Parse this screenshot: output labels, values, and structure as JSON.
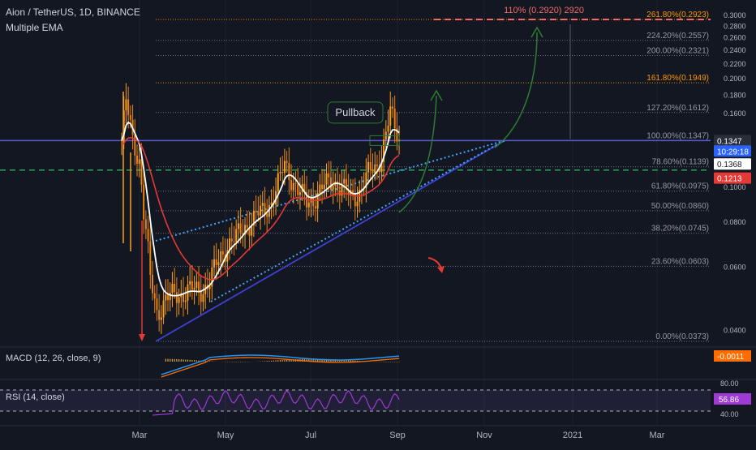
{
  "header": {
    "symbol_line": "Aion / TetherUS, 1D, BINANCE",
    "indicator": "Multiple EMA"
  },
  "macd_label": "MACD (12, 26, close, 9)",
  "rsi_label": "RSI (14, close)",
  "colors": {
    "background": "#131722",
    "bull": "#f7a021",
    "ema_fast": "#ffffff",
    "ema_slow": "#e53935",
    "fib_line": "#787b86",
    "fib_161": "#ff9800",
    "fib_261": "#ff9800",
    "target_dash": "#f06a6a",
    "trend_dotted": "#42a5f5",
    "trend_solid": "#3f3fd0",
    "support_dash": "#26a65b",
    "resistance": "#5a5ad6",
    "arrow_green": "#2e7d32",
    "arrow_red": "#e53935",
    "rsi": "#a03ad6",
    "macd_line": "#2196f3",
    "signal_line": "#ff6d00"
  },
  "chart_data": {
    "type": "candlestick",
    "x_tick_labels": [
      "Mar",
      "May",
      "Jul",
      "Sep",
      "Nov",
      "2021",
      "Mar"
    ],
    "y_tick_labels": [
      "0.3000",
      "0.2800",
      "0.2600",
      "0.2400",
      "0.2200",
      "0.2000",
      "0.1800",
      "0.1600",
      "0.1000",
      "0.0800",
      "0.0600",
      "0.0400"
    ],
    "price_scale": "log",
    "ylim": [
      0.035,
      0.305
    ],
    "price_path": [
      [
        0,
        0.135
      ],
      [
        2,
        0.17
      ],
      [
        5,
        0.135
      ],
      [
        8,
        0.12
      ],
      [
        10,
        0.085
      ],
      [
        13,
        0.055
      ],
      [
        16,
        0.045
      ],
      [
        20,
        0.049
      ],
      [
        25,
        0.05
      ],
      [
        30,
        0.052
      ],
      [
        35,
        0.051
      ],
      [
        40,
        0.055
      ],
      [
        44,
        0.062
      ],
      [
        48,
        0.07
      ],
      [
        52,
        0.072
      ],
      [
        56,
        0.078
      ],
      [
        60,
        0.082
      ],
      [
        64,
        0.085
      ],
      [
        68,
        0.092
      ],
      [
        72,
        0.105
      ],
      [
        74,
        0.115
      ],
      [
        76,
        0.11
      ],
      [
        80,
        0.098
      ],
      [
        84,
        0.09
      ],
      [
        88,
        0.095
      ],
      [
        92,
        0.1
      ],
      [
        96,
        0.105
      ],
      [
        100,
        0.1
      ],
      [
        104,
        0.093
      ],
      [
        108,
        0.098
      ],
      [
        112,
        0.108
      ],
      [
        116,
        0.115
      ],
      [
        118,
        0.125
      ],
      [
        120,
        0.14
      ],
      [
        122,
        0.16
      ],
      [
        124,
        0.145
      ],
      [
        126,
        0.137
      ]
    ],
    "fib_levels": [
      {
        "label": "0.00%(0.0373)",
        "price": 0.0373
      },
      {
        "label": "23.60%(0.0603)",
        "price": 0.0603
      },
      {
        "label": "38.20%(0.0745)",
        "price": 0.0745
      },
      {
        "label": "50.00%(0.0860)",
        "price": 0.086
      },
      {
        "label": "61.80%(0.0975)",
        "price": 0.0975
      },
      {
        "label": "78.60%(0.1139)",
        "price": 0.1139
      },
      {
        "label": "100.00%(0.1347)",
        "price": 0.1347
      },
      {
        "label": "127.20%(0.1612)",
        "price": 0.1612
      },
      {
        "label": "161.80%(0.1949)",
        "price": 0.1949,
        "highlight": true
      },
      {
        "label": "200.00%(0.2321)",
        "price": 0.2321
      },
      {
        "label": "224.20%(0.2557)",
        "price": 0.2557
      },
      {
        "label": "261.80%(0.2923)",
        "price": 0.2923,
        "highlight": true
      }
    ],
    "target_label": "110% (0.2920) 2920",
    "pullback_label": "Pullback",
    "price_badges": [
      {
        "text": "0.1347",
        "price": 0.1347,
        "bg": "#2a2e39",
        "fg": "#ffffff"
      },
      {
        "text": "10:29:18",
        "price": 0.126,
        "bg": "#2962ff",
        "fg": "#ffffff"
      },
      {
        "text": "0.1368",
        "price": 0.116,
        "bg": "#ffffff",
        "fg": "#131722"
      },
      {
        "text": "0.1213",
        "price": 0.106,
        "bg": "#e53935",
        "fg": "#ffffff"
      }
    ],
    "macd_value": "-0.0011",
    "rsi_value": "56.86",
    "rsi_ticks": [
      "80.00",
      "40.00"
    ]
  }
}
